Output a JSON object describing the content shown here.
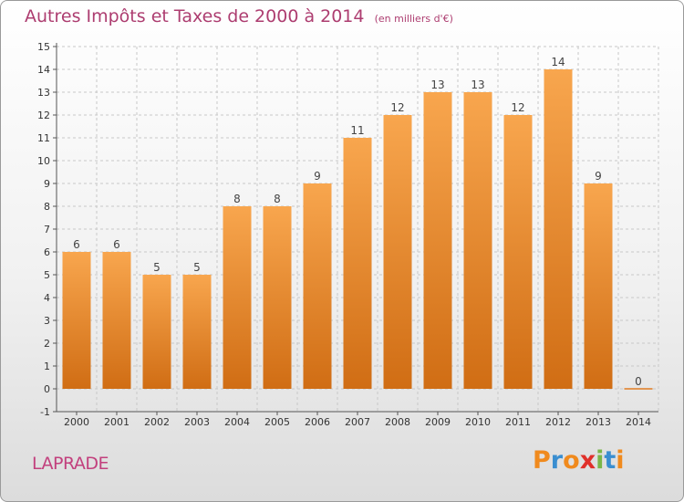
{
  "header": {
    "title": "Autres Impôts et Taxes de 2000 à 2014",
    "subtitle": "(en milliers d'€)"
  },
  "footer": {
    "city": "LAPRADE",
    "logo_letters": [
      "P",
      "r",
      "o",
      "x",
      "i",
      "t",
      "i"
    ],
    "logo_colors": [
      "#f08a1d",
      "#3a8ed0",
      "#f08a1d",
      "#e0302a",
      "#7ab648",
      "#3a8ed0",
      "#f08a1d"
    ]
  },
  "colors": {
    "bar_top": "#f8a64e",
    "bar_bottom": "#d06d14",
    "zero_line": "#e07c20",
    "axis": "#555555",
    "grid": "#c8c8c8",
    "title": "#ad3d70",
    "city": "#c2407d"
  },
  "chart_data": {
    "type": "bar",
    "title": "Autres Impôts et Taxes de 2000 à 2014",
    "subtitle": "(en milliers d'€)",
    "categories": [
      "2000",
      "2001",
      "2002",
      "2003",
      "2004",
      "2005",
      "2006",
      "2007",
      "2008",
      "2009",
      "2010",
      "2011",
      "2012",
      "2013",
      "2014"
    ],
    "values": [
      6,
      6,
      5,
      5,
      8,
      8,
      9,
      11,
      12,
      13,
      13,
      12,
      14,
      9,
      0
    ],
    "data_labels": [
      "6",
      "6",
      "5",
      "5",
      "8",
      "8",
      "9",
      "11",
      "12",
      "13",
      "13",
      "12",
      "14",
      "9",
      "0"
    ],
    "y_ticks": [
      "-1",
      "0",
      "1",
      "2",
      "3",
      "4",
      "5",
      "6",
      "7",
      "8",
      "9",
      "10",
      "11",
      "12",
      "13",
      "14",
      "15"
    ],
    "ylim": [
      -1,
      15
    ],
    "grid": true,
    "legend": "none"
  }
}
